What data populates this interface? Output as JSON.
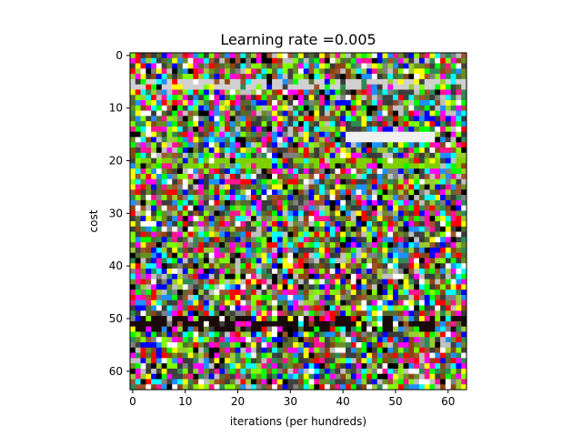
{
  "chart_data": {
    "type": "heatmap",
    "title": "Learning rate =0.005",
    "xlabel": "iterations (per hundreds)",
    "ylabel": "cost",
    "grid_size": [
      64,
      64
    ],
    "xlim": [
      -0.5,
      63.5
    ],
    "ylim": [
      63.5,
      -0.5
    ],
    "xticks": [
      0,
      10,
      20,
      30,
      40,
      50,
      60
    ],
    "yticks": [
      0,
      10,
      20,
      30,
      40,
      50,
      60
    ],
    "colormap": "rgb noise",
    "grid": false,
    "legend": "none",
    "features": [
      {
        "rows": [
          5,
          6
        ],
        "description": "light gray band",
        "color": "#d0d0d0"
      },
      {
        "rows": [
          15,
          16
        ],
        "description": "white streak on right half",
        "color": "#f0f0f0"
      },
      {
        "rows": [
          20,
          21
        ],
        "description": "green band",
        "color": "#7fd000"
      },
      {
        "rows": [
          50,
          52
        ],
        "description": "dark band",
        "color": "#1a0a0a"
      }
    ]
  }
}
